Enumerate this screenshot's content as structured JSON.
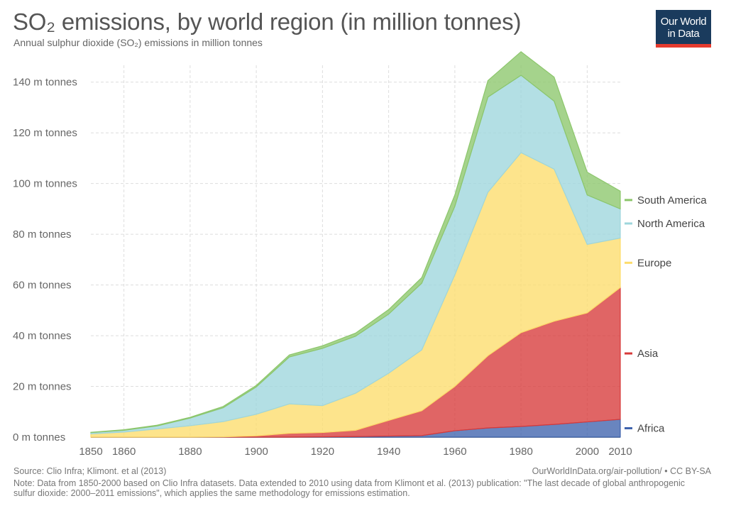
{
  "header": {
    "title": "SO₂ emissions, by world region (in million tonnes)",
    "subtitle": "Annual sulphur dioxide (SO₂) emissions in million tonnes",
    "logo_line1": "Our World",
    "logo_line2": "in Data"
  },
  "footer": {
    "source": "Source: Clio Infra; Klimont. et al (2013)",
    "license": "OurWorldInData.org/air-pollution/ • CC BY-SA",
    "note": "Note: Data from 1850-2000 based on Clio Infra datasets. Data extended to 2010 using data from Klimont et al. (2013) publication: \"The last decade of global anthropogenic sulfur dioxide: 2000–2011 emissions\", which applies the same methodology for emissions estimation."
  },
  "chart_data": {
    "type": "area",
    "stacked": true,
    "grid": true,
    "legend_position": "right",
    "x": [
      1850,
      1860,
      1870,
      1880,
      1890,
      1900,
      1910,
      1920,
      1930,
      1940,
      1950,
      1960,
      1970,
      1980,
      1990,
      2000,
      2010
    ],
    "xticks": [
      1850,
      1860,
      1880,
      1900,
      1920,
      1940,
      1960,
      1980,
      2000,
      2010
    ],
    "xtick_labels": [
      "1850",
      "1860",
      "1880",
      "1900",
      "1920",
      "1940",
      "1960",
      "1980",
      "2000",
      "2010"
    ],
    "yticks": [
      0,
      20,
      40,
      60,
      80,
      100,
      120,
      140
    ],
    "ytick_labels": [
      "0 m tonnes",
      "20 m tonnes",
      "40 m tonnes",
      "60 m tonnes",
      "80 m tonnes",
      "100 m tonnes",
      "120 m tonnes",
      "140 m tonnes"
    ],
    "ylim": [
      0,
      150
    ],
    "xlim": [
      1850,
      2010
    ],
    "series": [
      {
        "name": "Africa",
        "color": "#3f63ad",
        "values": [
          0,
          0,
          0,
          0,
          0,
          0,
          0,
          0.1,
          0.2,
          0.4,
          0.6,
          2.5,
          3.6,
          4.2,
          5.0,
          6.0,
          7.0
        ]
      },
      {
        "name": "Asia",
        "color": "#d73a3a",
        "values": [
          0,
          0,
          0,
          0,
          0.1,
          0.5,
          1.5,
          1.7,
          2.5,
          6.2,
          9.8,
          17.5,
          28.5,
          37.0,
          40.7,
          43.0,
          52.0
        ]
      },
      {
        "name": "Europe",
        "color": "#fddc6c",
        "values": [
          1.3,
          2.0,
          3.2,
          4.5,
          6.0,
          8.5,
          11.6,
          10.6,
          14.6,
          18.6,
          24.0,
          44.0,
          64.5,
          71.0,
          60.0,
          27.0,
          19.5
        ]
      },
      {
        "name": "North America",
        "color": "#9ed6dc",
        "values": [
          0.5,
          0.7,
          1.2,
          3.0,
          5.5,
          10.8,
          18.5,
          22.6,
          22.5,
          23.3,
          26.3,
          27.0,
          37.5,
          30.5,
          26.8,
          19.5,
          11.5
        ]
      },
      {
        "name": "South America",
        "color": "#8cc66b",
        "values": [
          0.1,
          0.2,
          0.3,
          0.3,
          0.5,
          0.6,
          0.8,
          1.0,
          1.2,
          1.8,
          2.2,
          4.5,
          6.5,
          9.3,
          9.5,
          9.0,
          7.0
        ]
      }
    ]
  }
}
